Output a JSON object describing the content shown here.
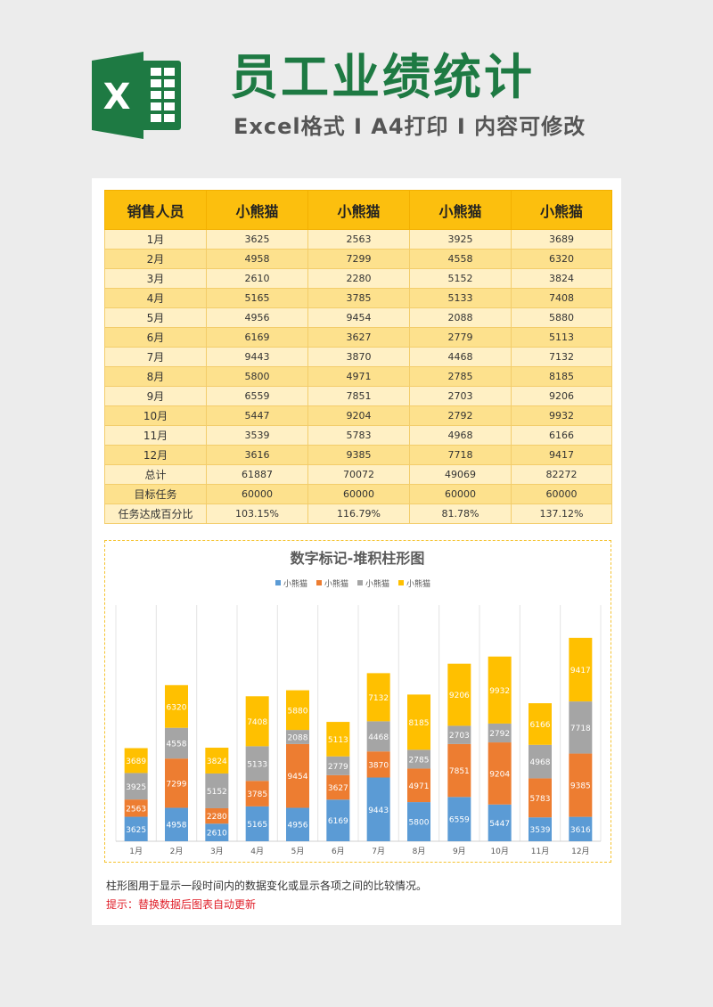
{
  "header": {
    "title": "员工业绩统计",
    "subtitle": "Excel格式 I A4打印 I 内容可修改",
    "logo_letter": "X"
  },
  "table": {
    "headers": [
      "销售人员",
      "小熊猫",
      "小熊猫",
      "小熊猫",
      "小熊猫"
    ],
    "rows": [
      [
        "1月",
        "3625",
        "2563",
        "3925",
        "3689"
      ],
      [
        "2月",
        "4958",
        "7299",
        "4558",
        "6320"
      ],
      [
        "3月",
        "2610",
        "2280",
        "5152",
        "3824"
      ],
      [
        "4月",
        "5165",
        "3785",
        "5133",
        "7408"
      ],
      [
        "5月",
        "4956",
        "9454",
        "2088",
        "5880"
      ],
      [
        "6月",
        "6169",
        "3627",
        "2779",
        "5113"
      ],
      [
        "7月",
        "9443",
        "3870",
        "4468",
        "7132"
      ],
      [
        "8月",
        "5800",
        "4971",
        "2785",
        "8185"
      ],
      [
        "9月",
        "6559",
        "7851",
        "2703",
        "9206"
      ],
      [
        "10月",
        "5447",
        "9204",
        "2792",
        "9932"
      ],
      [
        "11月",
        "3539",
        "5783",
        "4968",
        "6166"
      ],
      [
        "12月",
        "3616",
        "9385",
        "7718",
        "9417"
      ],
      [
        "总计",
        "61887",
        "70072",
        "49069",
        "82272"
      ],
      [
        "目标任务",
        "60000",
        "60000",
        "60000",
        "60000"
      ],
      [
        "任务达成百分比",
        "103.15%",
        "116.79%",
        "81.78%",
        "137.12%"
      ]
    ]
  },
  "chart_data": {
    "type": "bar",
    "stacked": true,
    "title": "数字标记-堆积柱形图",
    "categories": [
      "1月",
      "2月",
      "3月",
      "4月",
      "5月",
      "6月",
      "7月",
      "8月",
      "9月",
      "10月",
      "11月",
      "12月"
    ],
    "series": [
      {
        "name": "小熊猫",
        "color": "#5b9bd5",
        "values": [
          3625,
          4958,
          2610,
          5165,
          4956,
          6169,
          9443,
          5800,
          6559,
          5447,
          3539,
          3616
        ]
      },
      {
        "name": "小熊猫",
        "color": "#ed7d31",
        "values": [
          2563,
          7299,
          2280,
          3785,
          9454,
          3627,
          3870,
          4971,
          7851,
          9204,
          5783,
          9385
        ]
      },
      {
        "name": "小熊猫",
        "color": "#a5a5a5",
        "values": [
          3925,
          4558,
          5152,
          5133,
          2088,
          2779,
          4468,
          2785,
          2703,
          2792,
          4968,
          7718
        ]
      },
      {
        "name": "小熊猫",
        "color": "#ffc000",
        "values": [
          3689,
          6320,
          3824,
          7408,
          5880,
          5113,
          7132,
          8185,
          9206,
          9932,
          6166,
          9417
        ]
      }
    ],
    "ylim": [
      0,
      35000
    ],
    "grid": true,
    "legend": "top",
    "data_labels": true
  },
  "notes": {
    "description": "柱形图用于显示一段时间内的数据变化或显示各项之间的比较情况。",
    "tip": "提示：替换数据后图表自动更新"
  }
}
